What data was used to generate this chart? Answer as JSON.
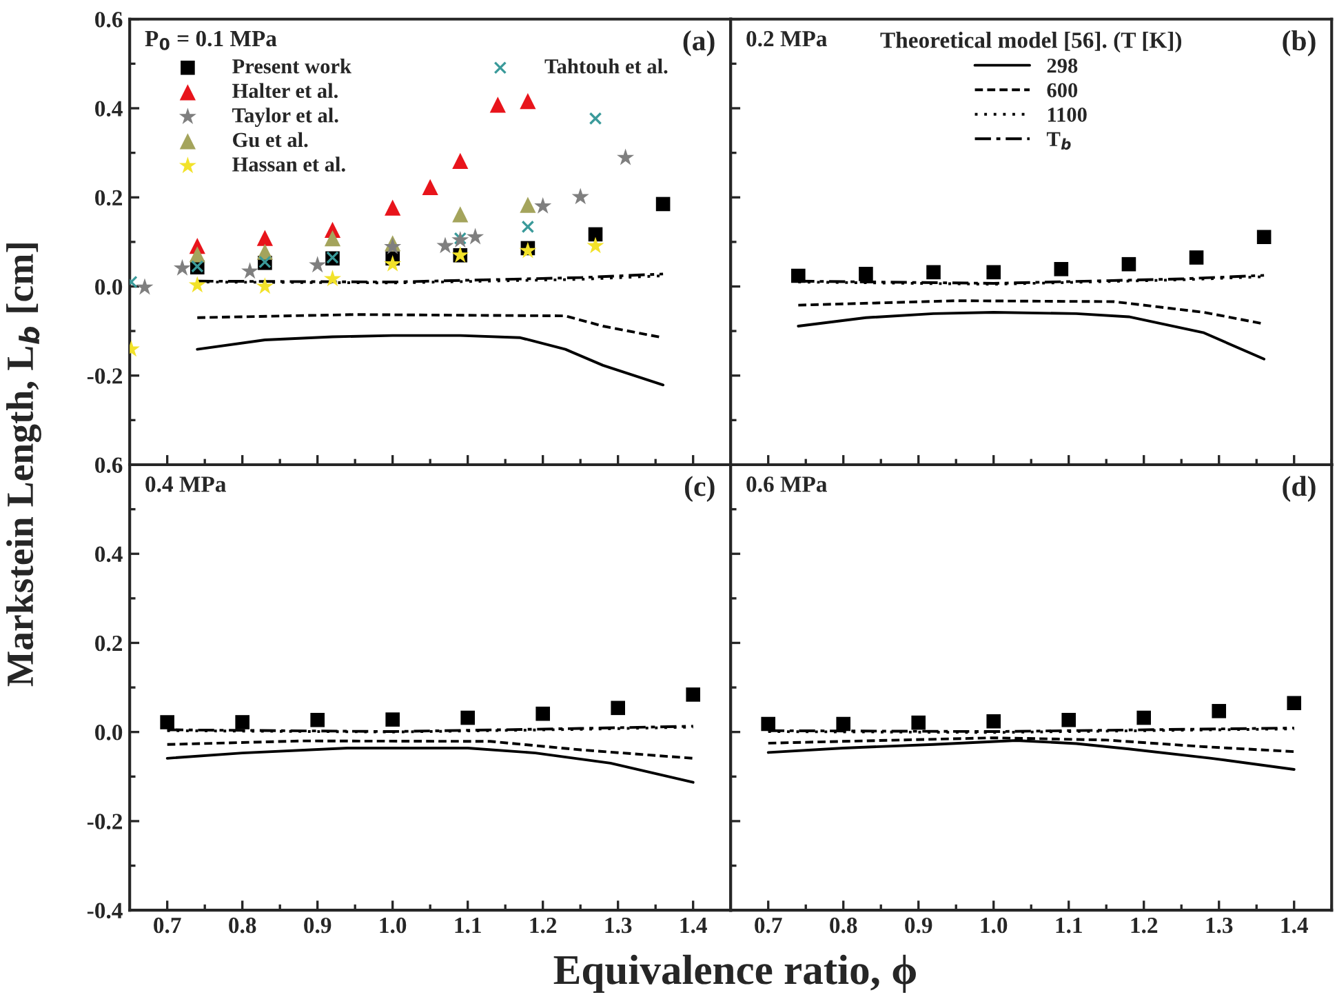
{
  "chart_data": [
    {
      "type": "scatter",
      "ylabel": "Markstein Length, L$_{b}$ [cm]",
      "xlim": [
        0.65,
        1.45
      ],
      "ylim": [
        -0.4,
        0.6
      ],
      "xticks": [
        0.7,
        0.8,
        0.9,
        1.0,
        1.1,
        1.2,
        1.3,
        1.4
      ],
      "yticks": [
        -0.2,
        {
          "value": 0,
          "label": "0.0"
        },
        0.2,
        0.4,
        0.6
      ],
      "tick_labels": "y",
      "legend": "top left",
      "grid": false,
      "annotations": [
        "P$_{0}$ = 0.1 MPa",
        "(a)"
      ],
      "series": [
        {
          "name": "Present work",
          "marker": "square",
          "color": "#000000",
          "x": [
            0.74,
            0.83,
            0.92,
            1.0,
            1.09,
            1.18,
            1.27,
            1.36
          ],
          "values": [
            0.043,
            0.053,
            0.063,
            0.063,
            0.07,
            0.086,
            0.117,
            0.185
          ]
        },
        {
          "name": "Halter et al.",
          "marker": "triangle",
          "color": "#e8141b",
          "x": [
            0.74,
            0.83,
            0.92,
            1.0,
            1.05,
            1.09,
            1.14,
            1.18
          ],
          "values": [
            0.091,
            0.109,
            0.127,
            0.177,
            0.223,
            0.282,
            0.408,
            0.416
          ]
        },
        {
          "name": "Taylor et al.",
          "marker": "star",
          "color": "#7f7f7f",
          "x": [
            0.67,
            0.72,
            0.81,
            0.9,
            1.0,
            1.07,
            1.09,
            1.11,
            1.2,
            1.25,
            1.31
          ],
          "values": [
            -0.002,
            0.041,
            0.034,
            0.048,
            0.089,
            0.091,
            0.104,
            0.111,
            0.18,
            0.201,
            0.289
          ]
        },
        {
          "name": "Gu et al.",
          "marker": "triangle",
          "color": "#a4a45c",
          "x": [
            0.74,
            0.83,
            0.92,
            1.0,
            1.09,
            1.18
          ],
          "values": [
            0.072,
            0.078,
            0.108,
            0.097,
            0.162,
            0.183
          ]
        },
        {
          "name": "Hassan et al.",
          "marker": "star",
          "color": "#f2e22a",
          "x": [
            0.652,
            0.74,
            0.83,
            0.92,
            1.0,
            1.09,
            1.18,
            1.27
          ],
          "values": [
            -0.141,
            0.003,
            0.0,
            0.017,
            0.05,
            0.07,
            0.08,
            0.091
          ]
        },
        {
          "name": "Tahtouh et al.",
          "marker": "cross",
          "color": "#3a9a9a",
          "x": [
            0.652,
            0.74,
            0.83,
            0.92,
            1.09,
            1.18,
            1.27
          ],
          "values": [
            0.01,
            0.045,
            0.055,
            0.065,
            0.108,
            0.134,
            0.377
          ]
        },
        {
          "type": "line",
          "line_style": "solid",
          "color": "#000000",
          "x": [
            0.74,
            0.83,
            0.92,
            1.0,
            1.09,
            1.17,
            1.23,
            1.28,
            1.36
          ],
          "values": [
            -0.141,
            -0.12,
            -0.113,
            -0.11,
            -0.11,
            -0.115,
            -0.141,
            -0.177,
            -0.221
          ]
        },
        {
          "type": "line",
          "line_style": "dashed",
          "color": "#000000",
          "x": [
            0.74,
            0.95,
            1.23,
            1.28,
            1.36
          ],
          "values": [
            -0.07,
            -0.063,
            -0.066,
            -0.089,
            -0.115
          ]
        },
        {
          "type": "line",
          "line_style": "dotted",
          "color": "#000000",
          "x": [
            0.74,
            1.0,
            1.25,
            1.36
          ],
          "values": [
            0.01,
            0.008,
            0.016,
            0.024
          ]
        },
        {
          "type": "line",
          "line_style": "dashdot",
          "color": "#000000",
          "x": [
            0.74,
            1.0,
            1.25,
            1.36
          ],
          "values": [
            0.012,
            0.01,
            0.02,
            0.028
          ]
        }
      ]
    },
    {
      "type": "scatter",
      "xlim": [
        0.65,
        1.45
      ],
      "ylim": [
        -0.4,
        0.6
      ],
      "xticks": [
        0.7,
        0.8,
        0.9,
        1.0,
        1.1,
        1.2,
        1.3,
        1.4
      ],
      "yticks": [
        -0.2,
        0,
        0.2,
        0.4,
        0.6
      ],
      "tick_labels": false,
      "legend": "top",
      "legend_title": "Theoretical model [56]. (T [K])",
      "grid": false,
      "annotations": [
        "0.2 MPa",
        "(b)"
      ],
      "series": [
        {
          "marker": "square",
          "color": "#000000",
          "x": [
            0.74,
            0.83,
            0.92,
            1.0,
            1.09,
            1.18,
            1.27,
            1.36
          ],
          "values": [
            0.024,
            0.028,
            0.032,
            0.032,
            0.039,
            0.05,
            0.065,
            0.111
          ]
        },
        {
          "name": "298",
          "type": "line",
          "line_style": "solid",
          "color": "#000000",
          "x": [
            0.74,
            0.83,
            0.92,
            1.0,
            1.11,
            1.18,
            1.28,
            1.36
          ],
          "values": [
            -0.089,
            -0.07,
            -0.061,
            -0.058,
            -0.061,
            -0.068,
            -0.104,
            -0.163
          ]
        },
        {
          "name": "600",
          "type": "line",
          "line_style": "dashed",
          "color": "#000000",
          "x": [
            0.74,
            0.95,
            1.16,
            1.28,
            1.36
          ],
          "values": [
            -0.042,
            -0.032,
            -0.034,
            -0.058,
            -0.084
          ]
        },
        {
          "name": "1100",
          "type": "line",
          "line_style": "dotted",
          "color": "#000000",
          "x": [
            0.74,
            1.0,
            1.25,
            1.36
          ],
          "values": [
            0.01,
            0.005,
            0.015,
            0.022
          ]
        },
        {
          "name": "T$_{b}$",
          "type": "line",
          "line_style": "dashdot",
          "color": "#000000",
          "x": [
            0.74,
            1.0,
            1.25,
            1.36
          ],
          "values": [
            0.012,
            0.007,
            0.017,
            0.025
          ]
        }
      ]
    },
    {
      "type": "scatter",
      "xlim": [
        0.65,
        1.45
      ],
      "ylim": [
        -0.4,
        0.6
      ],
      "xticks": [
        0.7,
        0.8,
        0.9,
        {
          "value": 1.0,
          "label": "1.0"
        },
        1.1,
        1.2,
        1.3,
        1.4
      ],
      "yticks": [
        -0.4,
        -0.2,
        {
          "value": 0,
          "label": "0.0"
        },
        0.2,
        0.4,
        0.6
      ],
      "xlabel": "Equivalence ratio, ϕ",
      "grid": false,
      "annotations": [
        "0.4 MPa",
        "(c)"
      ],
      "series": [
        {
          "marker": "square",
          "color": "#000000",
          "x": [
            0.7,
            0.8,
            0.9,
            1.0,
            1.1,
            1.2,
            1.3,
            1.4
          ],
          "values": [
            0.022,
            0.022,
            0.027,
            0.028,
            0.032,
            0.041,
            0.054,
            0.084
          ]
        },
        {
          "type": "line",
          "line_style": "solid",
          "color": "#000000",
          "x": [
            0.7,
            0.8,
            0.94,
            1.1,
            1.19,
            1.29,
            1.4
          ],
          "values": [
            -0.059,
            -0.047,
            -0.036,
            -0.036,
            -0.047,
            -0.07,
            -0.113
          ]
        },
        {
          "type": "line",
          "line_style": "dashed",
          "color": "#000000",
          "x": [
            0.7,
            0.88,
            1.13,
            1.25,
            1.4
          ],
          "values": [
            -0.028,
            -0.02,
            -0.021,
            -0.04,
            -0.059
          ]
        },
        {
          "type": "line",
          "line_style": "dotted",
          "color": "#000000",
          "x": [
            0.7,
            1.0,
            1.25,
            1.4
          ],
          "values": [
            0.003,
            0.0,
            0.006,
            0.011
          ]
        },
        {
          "type": "line",
          "line_style": "dashdot",
          "color": "#000000",
          "x": [
            0.7,
            1.0,
            1.25,
            1.4
          ],
          "values": [
            0.005,
            0.001,
            0.008,
            0.013
          ]
        }
      ]
    },
    {
      "type": "scatter",
      "xlim": [
        0.65,
        1.45
      ],
      "ylim": [
        -0.4,
        0.6
      ],
      "xticks": [
        0.7,
        0.8,
        0.9,
        {
          "value": 1.0,
          "label": "1.0"
        },
        1.1,
        1.2,
        1.3,
        1.4
      ],
      "yticks": [
        -0.2,
        0,
        0.2,
        0.4,
        0.6
      ],
      "tick_labels": "x",
      "grid": false,
      "annotations": [
        "0.6 MPa",
        "(d)"
      ],
      "series": [
        {
          "marker": "square",
          "color": "#000000",
          "x": [
            0.7,
            0.8,
            0.9,
            1.0,
            1.1,
            1.2,
            1.3,
            1.4
          ],
          "values": [
            0.018,
            0.018,
            0.021,
            0.024,
            0.027,
            0.032,
            0.047,
            0.065
          ]
        },
        {
          "type": "line",
          "line_style": "solid",
          "color": "#000000",
          "x": [
            0.7,
            0.8,
            0.92,
            1.03,
            1.11,
            1.18,
            1.29,
            1.4
          ],
          "values": [
            -0.046,
            -0.036,
            -0.028,
            -0.019,
            -0.026,
            -0.038,
            -0.059,
            -0.084
          ]
        },
        {
          "type": "line",
          "line_style": "dashed",
          "color": "#000000",
          "x": [
            0.7,
            1.0,
            1.15,
            1.28,
            1.4
          ],
          "values": [
            -0.025,
            -0.013,
            -0.018,
            -0.033,
            -0.044
          ]
        },
        {
          "type": "line",
          "line_style": "dotted",
          "color": "#000000",
          "x": [
            0.7,
            1.0,
            1.4
          ],
          "values": [
            0.001,
            -0.001,
            0.007
          ]
        },
        {
          "type": "line",
          "line_style": "dashdot",
          "color": "#000000",
          "x": [
            0.7,
            1.0,
            1.4
          ],
          "values": [
            0.003,
            0.001,
            0.009
          ]
        }
      ]
    }
  ]
}
